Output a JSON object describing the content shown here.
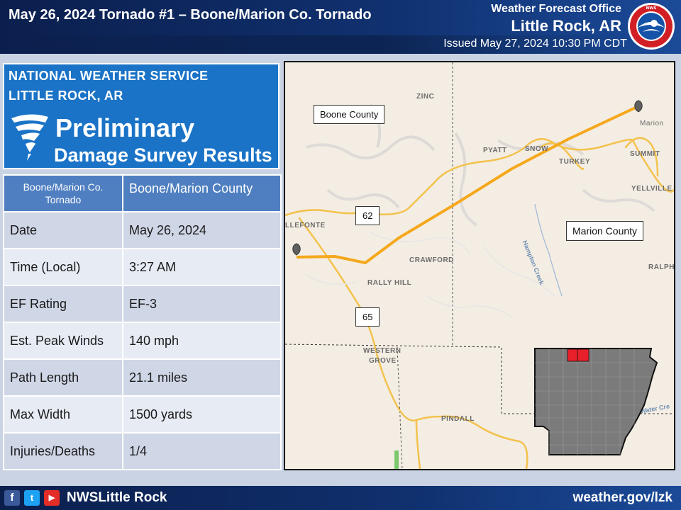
{
  "header": {
    "title": "May 26, 2024  Tornado #1 – Boone/Marion Co. Tornado",
    "office_label": "Weather Forecast Office",
    "office_city": "Little Rock, AR",
    "issued": "Issued May 27, 2024 10:30 PM CDT",
    "logo_icon": "nws-logo-icon",
    "logo_text": "NATIONAL WEATHER SERVICE"
  },
  "badge": {
    "org_line1": "NATIONAL WEATHER SERVICE",
    "org_line2": "LITTLE ROCK, AR",
    "title": "Preliminary",
    "subtitle": "Damage Survey Results",
    "icon": "tornado-icon"
  },
  "table": {
    "header_left": "Boone/Marion Co. Tornado",
    "header_right": "Boone/Marion County",
    "rows": [
      {
        "label": "Date",
        "value": "May 26, 2024"
      },
      {
        "label": "Time (Local)",
        "value": "3:27 AM"
      },
      {
        "label": "EF Rating",
        "value": "EF-3"
      },
      {
        "label": "Est. Peak Winds",
        "value": "140 mph"
      },
      {
        "label": "Path Length",
        "value": "21.1 miles"
      },
      {
        "label": "Max Width",
        "value": "1500 yards"
      },
      {
        "label": "Injuries/Deaths",
        "value": "1/4"
      }
    ]
  },
  "map": {
    "counties": {
      "west": "Boone County",
      "east": "Marion County"
    },
    "routes": {
      "r62": "62",
      "r65": "65"
    },
    "places": {
      "zinc": "ZINC",
      "marion": "Marion",
      "pyatt": "PYATT",
      "snow": "SNOW",
      "summit": "SUMMIT",
      "turkey": "TURKEY",
      "yellville": "YELLVILLE",
      "bellefonte": "LLEFONTE",
      "crawford": "CRAWFORD",
      "rally_hill": "RALLY HILL",
      "ralph": "RALPH",
      "western": "WESTERN",
      "grove": "GROVE",
      "pindall": "PINDALL"
    },
    "creeks": {
      "hampton": "Hampton Creek",
      "water": "Water Cre"
    },
    "track_color": "#f5a81c",
    "start_marker": "start-pin-icon",
    "end_marker": "end-pin-icon",
    "inset_highlight_color": "#e8202a",
    "inset_state_color": "#7b7b7b"
  },
  "footer": {
    "facebook": "f",
    "twitter": "t",
    "youtube": "▶",
    "handle": "NWSLittle Rock",
    "site": "weather.gov/lzk"
  },
  "colors": {
    "header": "#10306e",
    "badge": "#1a73c6",
    "table_head": "#4f7fc0"
  }
}
